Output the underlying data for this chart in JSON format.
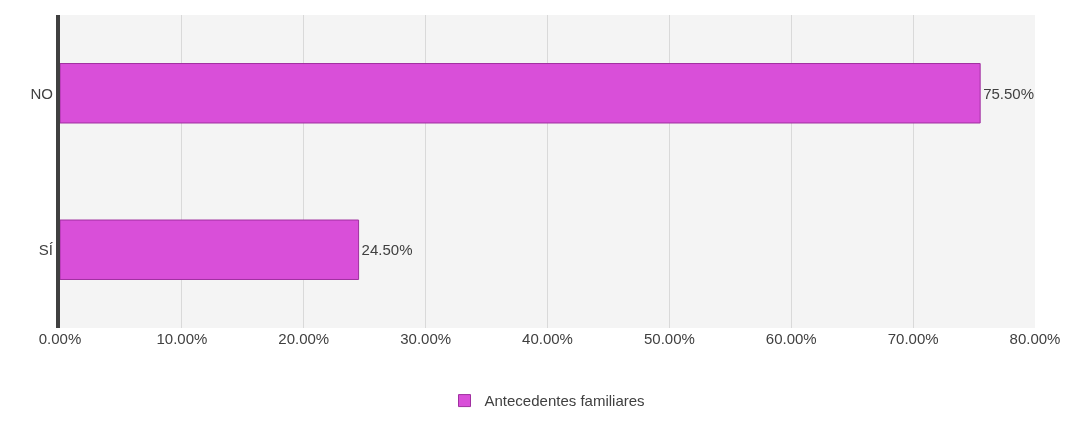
{
  "chart_data": {
    "type": "bar",
    "orientation": "horizontal",
    "categories": [
      "NO",
      "SÍ"
    ],
    "series": [
      {
        "name": "Antecedentes familiares",
        "color": "#d94fd9",
        "values": [
          75.5,
          24.5
        ],
        "value_labels": [
          "75.50%",
          "24.50%"
        ]
      }
    ],
    "xlim": [
      0,
      80
    ],
    "xticks": [
      {
        "value": 0,
        "label": "0.00%"
      },
      {
        "value": 10,
        "label": "10.00%"
      },
      {
        "value": 20,
        "label": "20.00%"
      },
      {
        "value": 30,
        "label": "30.00%"
      },
      {
        "value": 40,
        "label": "40.00%"
      },
      {
        "value": 50,
        "label": "50.00%"
      },
      {
        "value": 60,
        "label": "60.00%"
      },
      {
        "value": 70,
        "label": "70.00%"
      },
      {
        "value": 80,
        "label": "80.00%"
      }
    ],
    "grid": "x",
    "legend": "bottom"
  }
}
